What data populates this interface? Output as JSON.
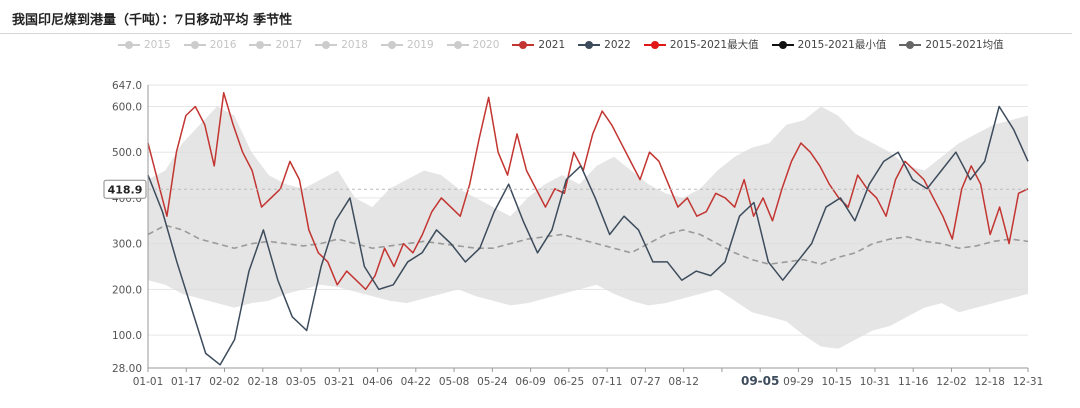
{
  "title": "我国印尼煤到港量（千吨）：7日移动平均 季节性",
  "legend": [
    {
      "label": "2015",
      "active": false,
      "color": "#cccccc"
    },
    {
      "label": "2016",
      "active": false,
      "color": "#cccccc"
    },
    {
      "label": "2017",
      "active": false,
      "color": "#cccccc"
    },
    {
      "label": "2018",
      "active": false,
      "color": "#cccccc"
    },
    {
      "label": "2019",
      "active": false,
      "color": "#cccccc"
    },
    {
      "label": "2020",
      "active": false,
      "color": "#cccccc"
    },
    {
      "label": "2021",
      "active": true,
      "color": "#c23531"
    },
    {
      "label": "2022",
      "active": true,
      "color": "#3d4c5c"
    },
    {
      "label": "2015-2021最大值",
      "active": true,
      "color": "#e01818"
    },
    {
      "label": "2015-2021最小值",
      "active": true,
      "color": "#111111"
    },
    {
      "label": "2015-2021均值",
      "active": true,
      "color": "#666666"
    }
  ],
  "chart_data": {
    "type": "line",
    "title": "我国印尼煤到港量（千吨）：7日移动平均 季节性",
    "ylim": [
      28.0,
      647.0
    ],
    "y_ticks": [
      {
        "value": 28,
        "label": "28.00"
      },
      {
        "value": 100,
        "label": "100.0"
      },
      {
        "value": 200,
        "label": "200.0"
      },
      {
        "value": 300,
        "label": "300.0"
      },
      {
        "value": 400,
        "label": "400.0"
      },
      {
        "value": 500,
        "label": "500.0"
      },
      {
        "value": 600,
        "label": "600.0"
      },
      {
        "value": 647,
        "label": "647.0"
      }
    ],
    "x_tick_labels": [
      "01-01",
      "01-17",
      "02-02",
      "02-18",
      "03-05",
      "03-21",
      "04-06",
      "04-22",
      "05-08",
      "05-24",
      "06-09",
      "06-25",
      "07-11",
      "07-27",
      "08-12",
      "",
      "09-05",
      "09-29",
      "10-15",
      "10-31",
      "11-16",
      "12-02",
      "12-18",
      "12-31"
    ],
    "cursor": {
      "x_label": "09-05",
      "y_value": 418.9,
      "y_label": "418.9"
    },
    "series": [
      {
        "name": "2015-2021最大值",
        "role": "band_upper",
        "values": [
          440,
          460,
          520,
          560,
          600,
          580,
          500,
          450,
          430,
          420,
          440,
          460,
          400,
          380,
          420,
          440,
          460,
          450,
          420,
          400,
          380,
          360,
          400,
          430,
          450,
          430,
          470,
          490,
          460,
          430,
          410,
          400,
          420,
          460,
          490,
          510,
          520,
          560,
          570,
          600,
          580,
          540,
          520,
          500,
          470,
          460,
          490,
          520,
          540,
          560,
          570,
          580
        ]
      },
      {
        "name": "2015-2021最小值",
        "role": "band_lower",
        "values": [
          220,
          210,
          190,
          180,
          170,
          160,
          170,
          175,
          190,
          200,
          210,
          205,
          195,
          185,
          175,
          170,
          180,
          190,
          200,
          185,
          175,
          165,
          170,
          180,
          190,
          200,
          210,
          190,
          175,
          165,
          170,
          180,
          190,
          200,
          175,
          150,
          140,
          130,
          100,
          75,
          70,
          90,
          110,
          120,
          140,
          160,
          170,
          150,
          160,
          170,
          180,
          190
        ]
      },
      {
        "name": "2015-2021均值",
        "role": "mean",
        "values": [
          320,
          340,
          330,
          310,
          300,
          290,
          300,
          305,
          300,
          295,
          300,
          310,
          300,
          290,
          295,
          300,
          305,
          300,
          295,
          290,
          290,
          300,
          310,
          315,
          320,
          310,
          300,
          290,
          280,
          300,
          320,
          330,
          320,
          300,
          280,
          265,
          255,
          260,
          265,
          255,
          270,
          280,
          300,
          310,
          315,
          305,
          300,
          290,
          295,
          305,
          310,
          305
        ]
      },
      {
        "name": "2021",
        "role": "line",
        "values": [
          520,
          440,
          360,
          500,
          580,
          600,
          560,
          470,
          630,
          560,
          500,
          460,
          380,
          400,
          420,
          480,
          440,
          330,
          280,
          260,
          210,
          240,
          220,
          200,
          230,
          290,
          250,
          300,
          280,
          320,
          370,
          400,
          380,
          360,
          430,
          530,
          620,
          500,
          450,
          540,
          460,
          420,
          380,
          420,
          410,
          500,
          460,
          540,
          590,
          560,
          520,
          480,
          440,
          500,
          480,
          430,
          380,
          400,
          360,
          370,
          410,
          400,
          380,
          440,
          360,
          400,
          350,
          420,
          480,
          520,
          500,
          470,
          430,
          400,
          380,
          450,
          420,
          400,
          360,
          440,
          480,
          460,
          440,
          400,
          360,
          310,
          420,
          470,
          430,
          320,
          380,
          300,
          410,
          420
        ]
      },
      {
        "name": "2022",
        "role": "line",
        "values": [
          450,
          370,
          260,
          160,
          60,
          35,
          90,
          240,
          330,
          220,
          140,
          110,
          250,
          350,
          400,
          250,
          200,
          210,
          260,
          280,
          330,
          300,
          260,
          290,
          370,
          430,
          350,
          280,
          330,
          440,
          470,
          400,
          320,
          360,
          330,
          260,
          260,
          220,
          240,
          230,
          260,
          360,
          390,
          260,
          220,
          260,
          300,
          380,
          400,
          350,
          430,
          480,
          500,
          440,
          420,
          460,
          500,
          440,
          480,
          600,
          550,
          480
        ]
      }
    ]
  }
}
